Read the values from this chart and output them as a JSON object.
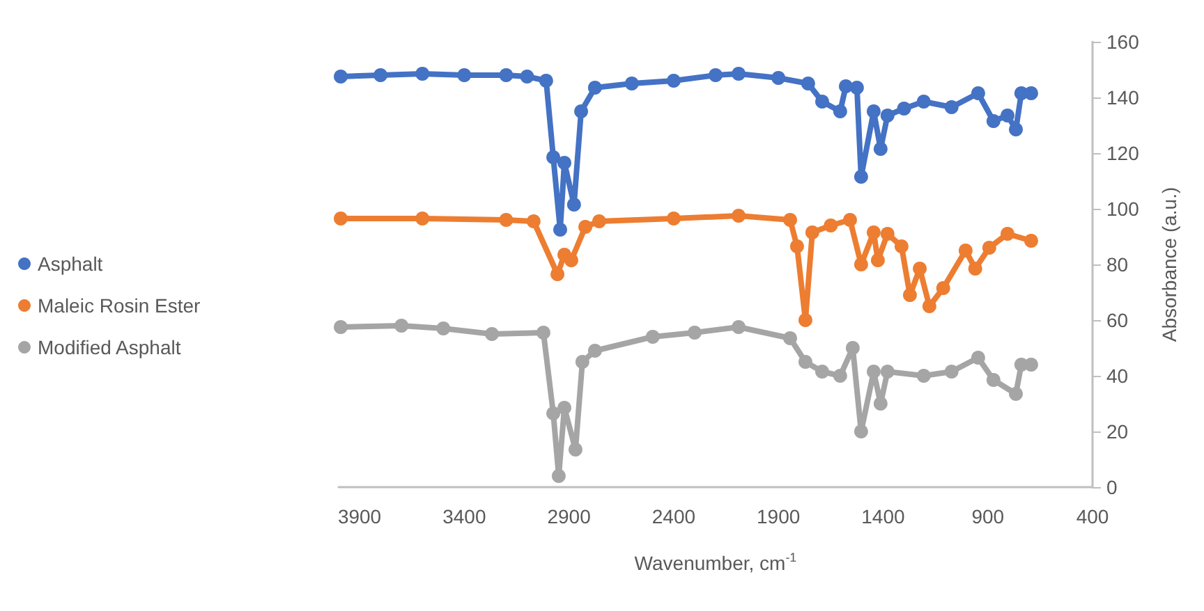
{
  "chart_data": {
    "type": "line",
    "xlabel": "Wavenumber, cm$^{-1}$",
    "ylabel": "Absorbance (a.u.)",
    "xlim": [
      4000,
      400
    ],
    "xticks": [
      3900,
      3400,
      2900,
      2400,
      1900,
      1400,
      900,
      400
    ],
    "ylim": [
      0,
      160
    ],
    "yticks": [
      0,
      20,
      40,
      60,
      80,
      100,
      120,
      140,
      160
    ],
    "grid": false,
    "legend": "left",
    "marker": "circle",
    "line_style": "solid",
    "series": [
      {
        "name": "Asphalt",
        "color": "#4472c4",
        "x": [
          3990,
          3800,
          3600,
          3400,
          3200,
          3100,
          3009,
          2975,
          2942,
          2922,
          2876,
          2842,
          2776,
          2600,
          2400,
          2200,
          2090,
          1900,
          1758,
          1691,
          1605,
          1578,
          1525,
          1505,
          1445,
          1412,
          1379,
          1300,
          1206,
          1073,
          946,
          873,
          806,
          766,
          740,
          693
        ],
        "values": [
          147.5,
          148,
          148.5,
          148,
          148,
          147.5,
          146,
          118.5,
          92.5,
          116.5,
          101.5,
          135,
          143.5,
          145,
          146,
          148,
          148.5,
          147,
          145,
          138.5,
          135,
          144,
          143.5,
          111.5,
          135,
          121.5,
          133.5,
          136,
          138.5,
          136.5,
          141.5,
          131.5,
          133.5,
          128.5,
          141.5,
          141.5
        ]
      },
      {
        "name": "Maleic Rosin Ester",
        "color": "#ed7d31",
        "x": [
          3990,
          3600,
          3200,
          3069,
          2955,
          2922,
          2889,
          2822,
          2756,
          2400,
          2090,
          1844,
          1811,
          1771,
          1738,
          1650,
          1558,
          1505,
          1445,
          1425,
          1379,
          1312,
          1272,
          1225,
          1179,
          1113,
          1006,
          960,
          893,
          806,
          693
        ],
        "values": [
          96.5,
          96.5,
          96,
          95.5,
          76.5,
          83.5,
          81.5,
          93.5,
          95.5,
          96.5,
          97.5,
          96,
          86.5,
          60,
          91.5,
          94,
          96,
          80,
          91.5,
          81.5,
          91,
          86.5,
          69,
          78.5,
          65,
          71.5,
          85,
          78.5,
          86,
          91,
          88.5
        ]
      },
      {
        "name": "Modified Asphalt",
        "color": "#a5a5a5",
        "x": [
          3990,
          3700,
          3500,
          3268,
          3022,
          2975,
          2949,
          2922,
          2869,
          2836,
          2776,
          2500,
          2300,
          2090,
          1844,
          1771,
          1691,
          1605,
          1545,
          1505,
          1445,
          1412,
          1379,
          1206,
          1073,
          946,
          873,
          766,
          740,
          693
        ],
        "values": [
          57.5,
          58,
          57,
          55,
          55.5,
          26.5,
          4,
          28.5,
          13.5,
          45,
          49,
          54,
          55.5,
          57.5,
          53.5,
          45,
          41.5,
          40,
          50,
          20,
          41.5,
          30,
          41.5,
          40,
          41.5,
          46.5,
          38.5,
          33.5,
          44,
          44
        ]
      }
    ]
  }
}
